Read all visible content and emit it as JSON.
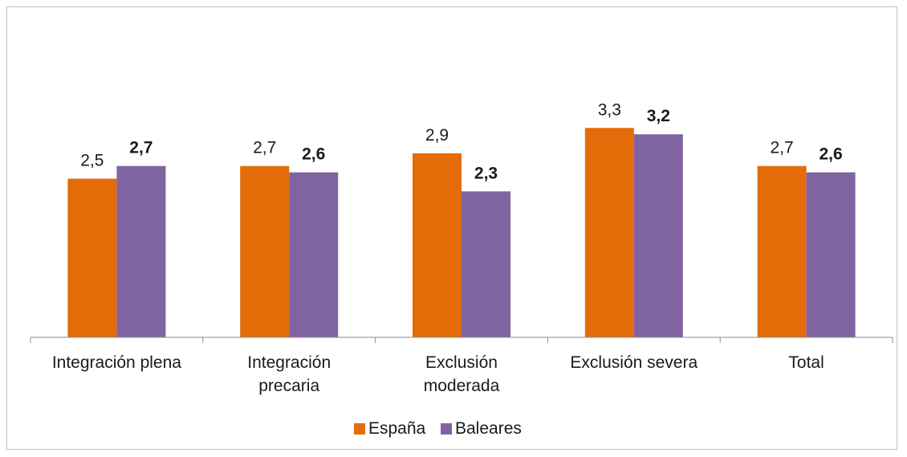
{
  "chart_data": {
    "type": "bar",
    "categories": [
      "Integración plena",
      "Integración precaria",
      "Exclusión moderada",
      "Exclusión severa",
      "Total"
    ],
    "category_label_lines": [
      [
        "Integración plena"
      ],
      [
        "Integración",
        "precaria"
      ],
      [
        "Exclusión",
        "moderada"
      ],
      [
        "Exclusión severa"
      ],
      [
        "Total"
      ]
    ],
    "series": [
      {
        "name": "España",
        "values": [
          2.5,
          2.7,
          2.9,
          3.3,
          2.7
        ],
        "labels": [
          "2,5",
          "2,7",
          "2,9",
          "3,3",
          "2,7"
        ],
        "color": "#e36c09",
        "label_weight": "normal"
      },
      {
        "name": "Baleares",
        "values": [
          2.7,
          2.6,
          2.3,
          3.2,
          2.6
        ],
        "labels": [
          "2,7",
          "2,6",
          "2,3",
          "3,2",
          "2,6"
        ],
        "color": "#8064a2",
        "label_weight": "bold"
      }
    ],
    "title": "",
    "xlabel": "",
    "ylabel": "",
    "ylim": [
      0,
      3.5
    ],
    "grid": false,
    "legend_position": "bottom"
  }
}
